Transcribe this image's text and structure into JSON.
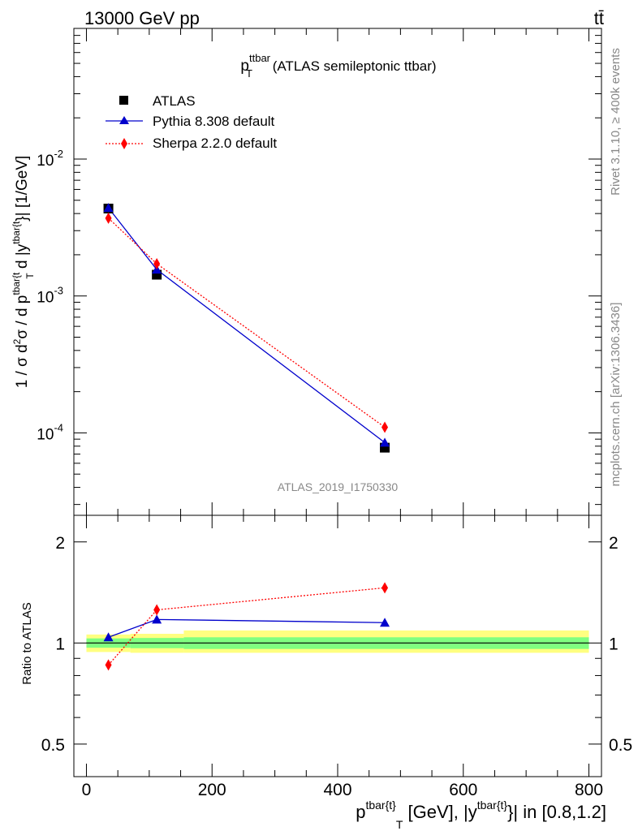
{
  "header": {
    "energy": "13000 GeV pp",
    "process": "tt̄"
  },
  "side_labels": {
    "rivet": "Rivet 3.1.10, ≥ 400k events",
    "mcplots": "mcplots.cern.ch [arXiv:1306.3436]"
  },
  "chart_data": [
    {
      "type": "line",
      "title": {
        "main": "p",
        "sup": "ttbar",
        "sub": "T",
        "rest": " (ATLAS semileptonic ttbar)"
      },
      "watermark": "ATLAS_2019_I1750330",
      "ylabel": "1 / σ d²σ / d p^{tbar{t}}_T d |y^{tbar{t}}| [1/GeV]",
      "ylabel_parts": {
        "a": "1 / σ d",
        "a_sup": "2",
        "b": "σ  /  d p",
        "b_sup": "tbar{t",
        "b_sub": "T",
        "c": " d |y",
        "c_sup": "tbar{t",
        "d": "}| [1/GeV]"
      },
      "xlim": [
        -20,
        820
      ],
      "ylim": [
        2.5e-05,
        0.09
      ],
      "yscale": "log",
      "ytick_labels": [
        {
          "value": 0.01,
          "base": "10",
          "exp": "-2"
        },
        {
          "value": 0.001,
          "base": "10",
          "exp": "-3"
        },
        {
          "value": 0.0001,
          "base": "10",
          "exp": "-4"
        }
      ],
      "legend_position": "top-left",
      "series": [
        {
          "name": "ATLAS",
          "marker": "square",
          "color": "#000000",
          "x": [
            35,
            112,
            475
          ],
          "y": [
            0.00435,
            0.00143,
            7.8e-05
          ],
          "x_err": [
            [
              0,
              70
            ],
            [
              70,
              155
            ],
            [
              150,
              800
            ]
          ]
        },
        {
          "name": "Pythia 8.308 default",
          "marker": "triangle",
          "color": "#0000cc",
          "line": "solid",
          "x": [
            35,
            112,
            475
          ],
          "y": [
            0.0044,
            0.00156,
            8.5e-05
          ]
        },
        {
          "name": "Sherpa 2.2.0 default",
          "marker": "diamond",
          "color": "#ff0000",
          "line": "dotted",
          "x": [
            35,
            112,
            475
          ],
          "y": [
            0.0037,
            0.00172,
            0.00011
          ]
        }
      ]
    },
    {
      "type": "line",
      "ylabel": "Ratio to ATLAS",
      "xlabel_parts": {
        "a": "p",
        "a_sup": "tbar{t}",
        "a_sub": "T",
        "b": " [GeV], |y",
        "b_sup": "tbar{t}",
        "c": "}| in [0.8,1.2]"
      },
      "xlim": [
        -20,
        820
      ],
      "ylim": [
        0.4,
        2.4
      ],
      "yscale": "log",
      "xtick_labels": [
        {
          "value": 0,
          "label": "0"
        },
        {
          "value": 200,
          "label": "200"
        },
        {
          "value": 400,
          "label": "400"
        },
        {
          "value": 600,
          "label": "600"
        },
        {
          "value": 800,
          "label": "800"
        }
      ],
      "ytick_labels": [
        {
          "value": 0.5,
          "label": "0.5"
        },
        {
          "value": 1,
          "label": "1"
        },
        {
          "value": 2,
          "label": "2"
        }
      ],
      "bands": [
        {
          "x": [
            0,
            70
          ],
          "green": [
            0.968,
            1.032
          ],
          "yellow": [
            0.94,
            1.06
          ]
        },
        {
          "x": [
            70,
            155
          ],
          "green": [
            0.965,
            1.035
          ],
          "yellow": [
            0.935,
            1.065
          ]
        },
        {
          "x": [
            155,
            800
          ],
          "green": [
            0.96,
            1.04
          ],
          "yellow": [
            0.935,
            1.09
          ]
        }
      ],
      "series": [
        {
          "name": "Pythia 8.308 default",
          "marker": "triangle",
          "color": "#0000cc",
          "line": "solid",
          "x": [
            35,
            112,
            475
          ],
          "y": [
            1.04,
            1.175,
            1.15
          ]
        },
        {
          "name": "Sherpa 2.2.0 default",
          "marker": "diamond",
          "color": "#ff0000",
          "line": "dotted",
          "x": [
            35,
            112,
            475
          ],
          "y": [
            0.86,
            1.255,
            1.46
          ]
        }
      ]
    }
  ]
}
